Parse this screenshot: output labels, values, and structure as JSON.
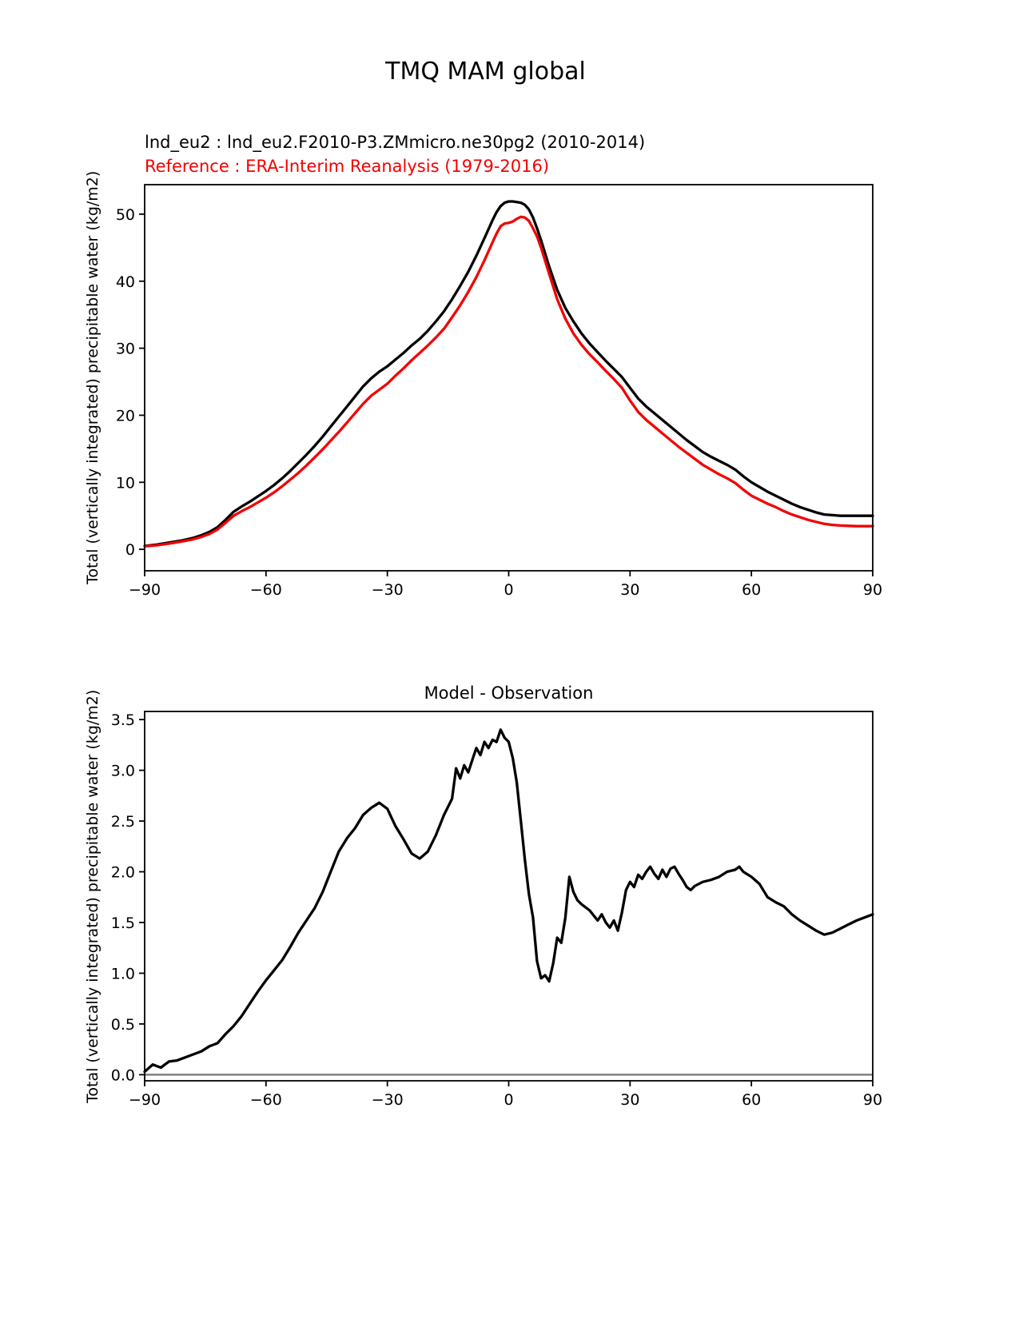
{
  "figure": {
    "title": "TMQ MAM global",
    "background": "#ffffff"
  },
  "chart_data": [
    {
      "type": "line",
      "name": "tmq-latitude-profile",
      "legend": [
        {
          "label": "lnd_eu2 : lnd_eu2.F2010-P3.ZMmicro.ne30pg2 (2010-2014)",
          "color": "#000000"
        },
        {
          "label": "Reference : ERA-Interim Reanalysis (1979-2016)",
          "color": "#f40000"
        }
      ],
      "ylabel": "Total (vertically integrated) precipitable water (kg/m2)",
      "xlim": [
        -90,
        90
      ],
      "ylim": [
        -3.2,
        54.4
      ],
      "xticks": [
        -90,
        -60,
        -30,
        0,
        30,
        60,
        90
      ],
      "yticks": [
        0,
        10,
        20,
        30,
        40,
        50
      ],
      "ytick_labels": [
        "0",
        "10",
        "20",
        "30",
        "40",
        "50"
      ],
      "grid": false,
      "series": [
        {
          "name": "lnd_eu2",
          "color": "#000000",
          "x": [
            -90,
            -87,
            -84,
            -81,
            -78,
            -76,
            -74,
            -72,
            -70,
            -68,
            -66,
            -64,
            -62,
            -60,
            -58,
            -56,
            -54,
            -52,
            -50,
            -48,
            -46,
            -44,
            -42,
            -40,
            -38,
            -36,
            -34,
            -32,
            -30,
            -28,
            -26,
            -24,
            -22,
            -20,
            -18,
            -16,
            -14,
            -12,
            -10,
            -8,
            -6,
            -4,
            -3,
            -2,
            -1,
            0,
            1,
            2,
            3,
            4,
            5,
            6,
            7,
            8,
            10,
            12,
            14,
            16,
            18,
            20,
            22,
            24,
            26,
            28,
            30,
            32,
            34,
            36,
            38,
            40,
            42,
            44,
            46,
            48,
            50,
            52,
            54,
            56,
            58,
            60,
            62,
            64,
            66,
            68,
            70,
            72,
            74,
            76,
            78,
            80,
            82,
            84,
            86,
            88,
            90
          ],
          "y": [
            0.5,
            0.7,
            1.0,
            1.3,
            1.7,
            2.1,
            2.6,
            3.3,
            4.4,
            5.6,
            6.4,
            7.1,
            7.9,
            8.7,
            9.6,
            10.6,
            11.7,
            12.9,
            14.1,
            15.4,
            16.8,
            18.3,
            19.8,
            21.3,
            22.8,
            24.3,
            25.5,
            26.5,
            27.3,
            28.3,
            29.3,
            30.4,
            31.4,
            32.6,
            34.0,
            35.5,
            37.3,
            39.3,
            41.4,
            43.8,
            46.4,
            49.1,
            50.3,
            51.2,
            51.7,
            51.9,
            51.9,
            51.8,
            51.7,
            51.4,
            50.7,
            49.5,
            47.9,
            46.1,
            42.2,
            38.7,
            36.0,
            34.0,
            32.2,
            30.7,
            29.4,
            28.1,
            26.9,
            25.7,
            24.1,
            22.5,
            21.3,
            20.3,
            19.3,
            18.3,
            17.3,
            16.3,
            15.4,
            14.5,
            13.8,
            13.2,
            12.6,
            11.9,
            10.9,
            10.0,
            9.3,
            8.6,
            8.0,
            7.4,
            6.8,
            6.3,
            5.9,
            5.5,
            5.2,
            5.1,
            5.0,
            5.0,
            5.0,
            5.0,
            5.0
          ]
        },
        {
          "name": "reference",
          "color": "#f40000",
          "x": [
            -90,
            -87,
            -84,
            -81,
            -78,
            -76,
            -74,
            -72,
            -70,
            -68,
            -66,
            -64,
            -62,
            -60,
            -58,
            -56,
            -54,
            -52,
            -50,
            -48,
            -46,
            -44,
            -42,
            -40,
            -38,
            -36,
            -34,
            -32,
            -30,
            -28,
            -26,
            -24,
            -22,
            -20,
            -18,
            -16,
            -14,
            -12,
            -10,
            -8,
            -6,
            -4,
            -3,
            -2,
            -1,
            0,
            1,
            2,
            3,
            4,
            5,
            6,
            7,
            8,
            10,
            12,
            14,
            16,
            18,
            20,
            22,
            24,
            26,
            28,
            30,
            32,
            34,
            36,
            38,
            40,
            42,
            44,
            46,
            48,
            50,
            52,
            54,
            56,
            58,
            60,
            62,
            64,
            66,
            68,
            70,
            72,
            74,
            76,
            78,
            80,
            82,
            84,
            86,
            88,
            90
          ],
          "y": [
            0.45,
            0.6,
            0.85,
            1.15,
            1.5,
            1.85,
            2.3,
            2.95,
            3.95,
            5.0,
            5.7,
            6.3,
            7.0,
            7.7,
            8.5,
            9.4,
            10.4,
            11.4,
            12.5,
            13.7,
            14.9,
            16.2,
            17.5,
            18.9,
            20.3,
            21.7,
            22.9,
            23.8,
            24.7,
            25.9,
            27.0,
            28.2,
            29.3,
            30.4,
            31.6,
            32.9,
            34.6,
            36.4,
            38.4,
            40.6,
            43.1,
            45.8,
            47.1,
            48.2,
            48.6,
            48.7,
            48.9,
            49.3,
            49.6,
            49.5,
            49.0,
            47.9,
            46.7,
            45.0,
            41.1,
            37.3,
            34.4,
            32.2,
            30.5,
            29.1,
            27.9,
            26.6,
            25.4,
            24.1,
            22.2,
            20.5,
            19.3,
            18.3,
            17.3,
            16.3,
            15.3,
            14.4,
            13.5,
            12.6,
            11.9,
            11.2,
            10.6,
            9.9,
            8.9,
            8.0,
            7.4,
            6.8,
            6.3,
            5.7,
            5.2,
            4.8,
            4.4,
            4.1,
            3.8,
            3.65,
            3.55,
            3.5,
            3.45,
            3.45,
            3.45
          ]
        }
      ]
    },
    {
      "type": "line",
      "name": "model-minus-observation",
      "title": "Model - Observation",
      "ylabel": "Total (vertically integrated) precipitable water (kg/m2)",
      "xlim": [
        -90,
        90
      ],
      "ylim": [
        -0.06,
        3.58
      ],
      "xticks": [
        -90,
        -60,
        -30,
        0,
        30,
        60,
        90
      ],
      "yticks": [
        0.0,
        0.5,
        1.0,
        1.5,
        2.0,
        2.5,
        3.0,
        3.5
      ],
      "ytick_labels": [
        "0.0",
        "0.5",
        "1.0",
        "1.5",
        "2.0",
        "2.5",
        "3.0",
        "3.5"
      ],
      "grid": false,
      "zero_line": {
        "y": 0,
        "color": "#808080"
      },
      "series": [
        {
          "name": "difference",
          "color": "#000000",
          "x": [
            -90,
            -88,
            -86,
            -84,
            -82,
            -80,
            -78,
            -76,
            -74,
            -72,
            -70,
            -68,
            -66,
            -64,
            -62,
            -60,
            -58,
            -56,
            -54,
            -52,
            -50,
            -48,
            -46,
            -44,
            -42,
            -40,
            -38,
            -36,
            -34,
            -32,
            -30,
            -28,
            -26,
            -24,
            -22,
            -20,
            -18,
            -16,
            -14,
            -13,
            -12,
            -11,
            -10,
            -9,
            -8,
            -7,
            -6,
            -5,
            -4,
            -3,
            -2,
            -1,
            0,
            1,
            2,
            3,
            4,
            5,
            6,
            7,
            8,
            9,
            10,
            11,
            12,
            13,
            14,
            15,
            16,
            17,
            18,
            20,
            22,
            23,
            24,
            25,
            26,
            27,
            28,
            29,
            30,
            31,
            32,
            33,
            34,
            35,
            36,
            37,
            38,
            39,
            40,
            41,
            42,
            43,
            44,
            45,
            46,
            48,
            50,
            52,
            54,
            56,
            57,
            58,
            60,
            62,
            64,
            66,
            68,
            70,
            72,
            74,
            76,
            78,
            80,
            82,
            84,
            86,
            88,
            90
          ],
          "y": [
            0.03,
            0.1,
            0.07,
            0.13,
            0.14,
            0.17,
            0.2,
            0.23,
            0.28,
            0.31,
            0.4,
            0.48,
            0.58,
            0.7,
            0.82,
            0.93,
            1.03,
            1.13,
            1.26,
            1.4,
            1.52,
            1.64,
            1.8,
            2.0,
            2.2,
            2.33,
            2.43,
            2.56,
            2.63,
            2.68,
            2.62,
            2.45,
            2.32,
            2.18,
            2.13,
            2.2,
            2.36,
            2.56,
            2.72,
            3.02,
            2.92,
            3.05,
            2.98,
            3.1,
            3.22,
            3.15,
            3.28,
            3.22,
            3.3,
            3.28,
            3.4,
            3.32,
            3.28,
            3.12,
            2.88,
            2.5,
            2.12,
            1.78,
            1.55,
            1.12,
            0.95,
            0.98,
            0.92,
            1.1,
            1.35,
            1.3,
            1.55,
            1.95,
            1.8,
            1.72,
            1.68,
            1.62,
            1.52,
            1.58,
            1.5,
            1.45,
            1.52,
            1.42,
            1.6,
            1.82,
            1.9,
            1.85,
            1.97,
            1.93,
            2.0,
            2.05,
            1.98,
            1.93,
            2.02,
            1.95,
            2.03,
            2.05,
            1.98,
            1.92,
            1.85,
            1.82,
            1.86,
            1.9,
            1.92,
            1.95,
            2.0,
            2.02,
            2.05,
            2.0,
            1.95,
            1.88,
            1.75,
            1.7,
            1.66,
            1.58,
            1.52,
            1.47,
            1.42,
            1.38,
            1.4,
            1.44,
            1.48,
            1.52,
            1.55,
            1.58
          ]
        }
      ]
    }
  ]
}
